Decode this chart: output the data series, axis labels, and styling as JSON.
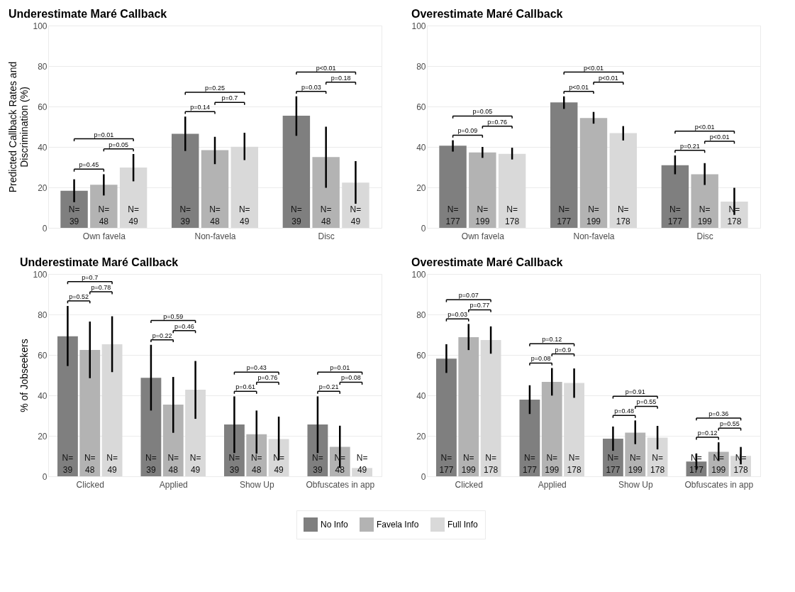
{
  "chart_data": [
    {
      "type": "bar",
      "title": "Underestimate Maré Callback",
      "ylabel": "Predicted Callback Rates and\nDiscrimination (%)",
      "categories": [
        "Own favela",
        "Non-favela",
        "Disc"
      ],
      "ylim": [
        0,
        100
      ],
      "yticks": [
        0,
        20,
        40,
        60,
        80,
        100
      ],
      "grid": "y",
      "legend": "bottom",
      "series": [
        {
          "name": "No Info",
          "color": "#7f7f7f",
          "values": [
            18.3,
            46.5,
            55.4
          ],
          "errors": [
            [
              12.7,
              24
            ],
            [
              38,
              55
            ],
            [
              45.5,
              65
            ]
          ]
        },
        {
          "name": "Favela Info",
          "color": "#b3b3b3",
          "values": [
            21.3,
            38.4,
            35
          ],
          "errors": [
            [
              16,
              26.5
            ],
            [
              31.5,
              45
            ],
            [
              19.8,
              50
            ]
          ]
        },
        {
          "name": "Full Info",
          "color": "#d9d9d9",
          "values": [
            29.8,
            40.1,
            22.4
          ],
          "errors": [
            [
              23,
              36.5
            ],
            [
              33.5,
              47
            ],
            [
              11.9,
              33
            ]
          ]
        }
      ],
      "annotations": [
        "p=0.45",
        "p=0.05",
        "p=0.01",
        "p=0.14",
        "p=0.7",
        "p=0.25",
        "p=0.03",
        "p=0.18",
        "p<0.01",
        "N=\n39",
        "N=\n48",
        "N=\n49",
        "N=\n39",
        "N=\n48",
        "N=\n49",
        "N=\n39",
        "N=\n48",
        "N=\n49"
      ]
    },
    {
      "type": "bar",
      "title": "Overestimate Maré Callback",
      "categories": [
        "Own favela",
        "Non-favela",
        "Disc"
      ],
      "ylim": [
        0,
        100
      ],
      "yticks": [
        0,
        20,
        40,
        60,
        80,
        100
      ],
      "grid": "y",
      "series": [
        {
          "name": "No Info",
          "color": "#7f7f7f",
          "values": [
            40.6,
            62,
            31
          ],
          "errors": [
            [
              37.7,
              43.3
            ],
            [
              58.8,
              65
            ],
            [
              26.5,
              35.8
            ]
          ]
        },
        {
          "name": "Favela Info",
          "color": "#b3b3b3",
          "values": [
            37.3,
            54.3,
            26.5
          ],
          "errors": [
            [
              34.6,
              40
            ],
            [
              51.5,
              57.3
            ],
            [
              21.2,
              32
            ]
          ]
        },
        {
          "name": "Full Info",
          "color": "#d9d9d9",
          "values": [
            36.6,
            46.8,
            13
          ],
          "errors": [
            [
              33.8,
              39.6
            ],
            [
              43.2,
              50.3
            ],
            [
              6.4,
              19.8
            ]
          ]
        }
      ],
      "annotations": [
        "p=0.09",
        "p=0.76",
        "p=0.05",
        "p<0.01",
        "p<0.01",
        "p<0.01",
        "p=0.21",
        "p<0.01",
        "p<0.01",
        "N=\n177",
        "N=\n199",
        "N=\n178",
        "N=\n177",
        "N=\n199",
        "N=\n178",
        "N=\n177",
        "N=\n199",
        "N=\n178"
      ]
    },
    {
      "type": "bar",
      "title": "Underestimate Maré Callback",
      "ylabel": "% of Jobseekers",
      "categories": [
        "Clicked",
        "Applied",
        "Show Up",
        "Obfuscates in app"
      ],
      "ylim": [
        0,
        100
      ],
      "yticks": [
        0,
        20,
        40,
        60,
        80,
        100
      ],
      "grid": "y",
      "series": [
        {
          "name": "No Info",
          "color": "#7f7f7f",
          "values": [
            69.2,
            48.7,
            25.6,
            25.6
          ],
          "errors": [
            [
              54.5,
              84.2
            ],
            [
              32.5,
              65
            ],
            [
              11.5,
              39.5
            ],
            [
              11.5,
              39.5
            ]
          ]
        },
        {
          "name": "Favela Info",
          "color": "#b3b3b3",
          "values": [
            62.5,
            35.4,
            20.8,
            14.6
          ],
          "errors": [
            [
              48.5,
              76.5
            ],
            [
              21.5,
              49.1
            ],
            [
              11.2,
              32.5
            ],
            [
              4.2,
              25
            ]
          ]
        },
        {
          "name": "Full Info",
          "color": "#d9d9d9",
          "values": [
            65.3,
            42.8,
            18.4,
            4.1
          ],
          "errors": [
            [
              51.5,
              79.1
            ],
            [
              28.4,
              57
            ],
            [
              8,
              29.5
            ],
            null
          ]
        }
      ],
      "annotations": [
        "p=0.52",
        "p=0.78",
        "p=0.7",
        "p=0.22",
        "p=0.46",
        "p=0.59",
        "p=0.61",
        "p=0.76",
        "p=0.43",
        "p=0.21",
        "p=0.08",
        "p=0.01",
        "N=\n39",
        "N=\n48",
        "N=\n49",
        "N=\n39",
        "N=\n48",
        "N=\n49",
        "N=\n39",
        "N=\n48",
        "N=\n49",
        "N=\n39",
        "N=\n48",
        "N=\n49"
      ]
    },
    {
      "type": "bar",
      "title": "Overestimate Maré Callback",
      "categories": [
        "Clicked",
        "Applied",
        "Show Up",
        "Obfuscates in app"
      ],
      "ylim": [
        0,
        100
      ],
      "yticks": [
        0,
        20,
        40,
        60,
        80,
        100
      ],
      "grid": "y",
      "series": [
        {
          "name": "No Info",
          "color": "#7f7f7f",
          "values": [
            58.2,
            37.9,
            18.6,
            7.3
          ],
          "errors": [
            [
              51.1,
              65.3
            ],
            [
              30.8,
              45
            ],
            [
              12.6,
              24.6
            ],
            [
              3.2,
              11.3
            ]
          ]
        },
        {
          "name": "Favela Info",
          "color": "#b3b3b3",
          "values": [
            68.8,
            46.7,
            21.6,
            12.1
          ],
          "errors": [
            [
              62.4,
              75.3
            ],
            [
              39.9,
              53.5
            ],
            [
              15.9,
              27.6
            ],
            [
              7.6,
              16.8
            ]
          ]
        },
        {
          "name": "Full Info",
          "color": "#d9d9d9",
          "values": [
            67.4,
            46.1,
            19.1,
            10.1
          ],
          "errors": [
            [
              60.6,
              74.1
            ],
            [
              38.8,
              53.3
            ],
            [
              13.3,
              24.9
            ],
            [
              5.9,
              14.5
            ]
          ]
        }
      ],
      "annotations": [
        "p=0.03",
        "p=0.77",
        "p=0.07",
        "p=0.08",
        "p=0.9",
        "p=0.12",
        "p=0.48",
        "p=0.55",
        "p=0.91",
        "p=0.12",
        "p=0.55",
        "p=0.36",
        "N=\n177",
        "N=\n199",
        "N=\n178",
        "N=\n177",
        "N=\n199",
        "N=\n178",
        "N=\n177",
        "N=\n199",
        "N=\n178",
        "N=\n177",
        "N=\n199",
        "N=\n178"
      ]
    }
  ]
}
